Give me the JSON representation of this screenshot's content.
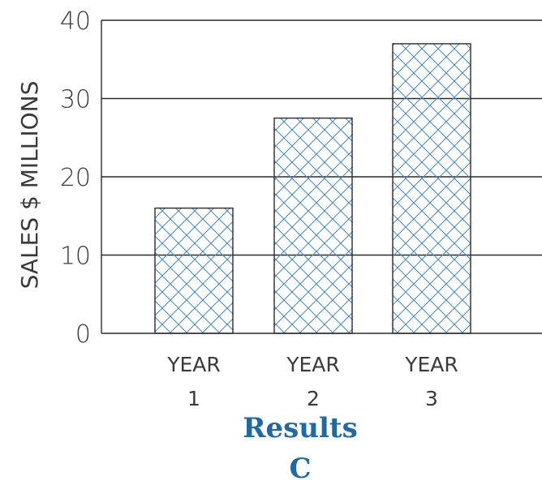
{
  "chart_data": {
    "type": "bar",
    "categories": [
      [
        "YEAR",
        "1"
      ],
      [
        "YEAR",
        "2"
      ],
      [
        "YEAR",
        "3"
      ]
    ],
    "values": [
      16,
      27.5,
      37
    ],
    "ylabel": "SALES $ MILLIONS",
    "xlabel": "",
    "ylim": [
      0,
      40
    ],
    "yticks": [
      0,
      10,
      20,
      30,
      40
    ],
    "grid": true,
    "bar_fill": "crosshatch",
    "bar_color": "#4a8ac8",
    "line_color": "#2b2b2b"
  },
  "caption": {
    "title": "Results",
    "letter": "C",
    "color": "#1f6aa5"
  }
}
